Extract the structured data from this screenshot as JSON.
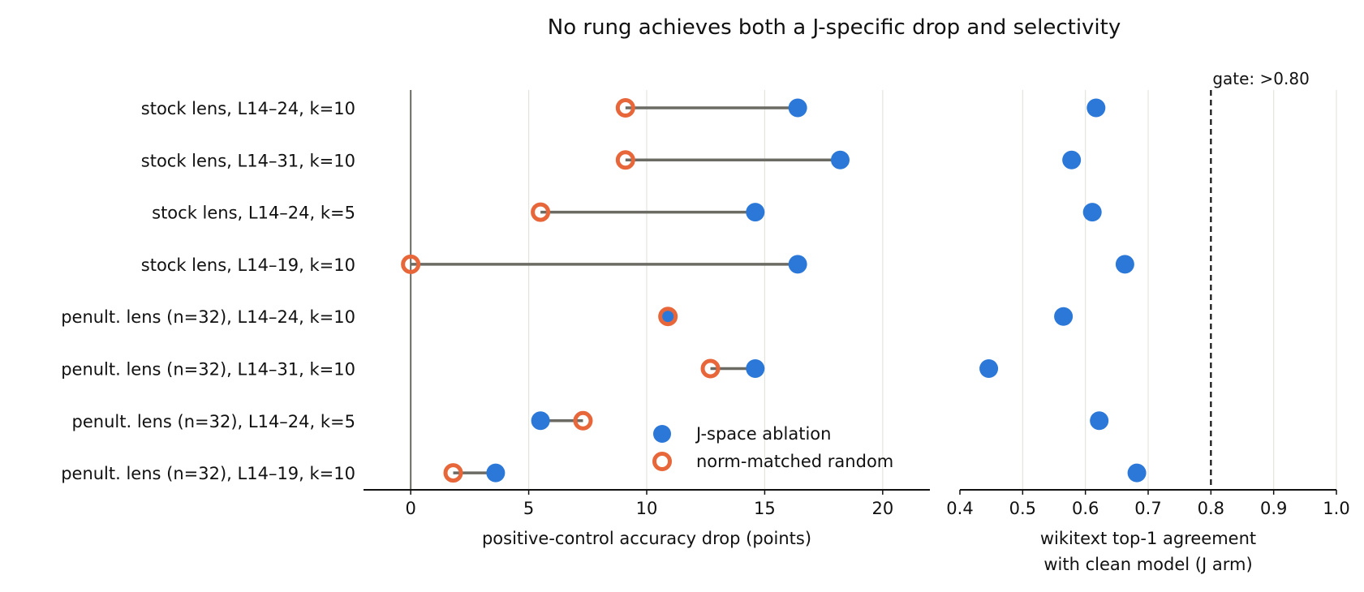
{
  "chart_data": [
    {
      "type": "dumbbell",
      "title": "No rung achieves both a J-specific drop and selectivity",
      "categories": [
        "stock lens, L14–24, k=10",
        "stock lens, L14–31, k=10",
        "stock lens, L14–24, k=5",
        "stock lens, L14–19, k=10",
        "penult. lens (n=32), L14–24, k=10",
        "penult. lens (n=32), L14–31, k=10",
        "penult. lens (n=32), L14–24, k=5",
        "penult. lens (n=32), L14–19, k=10"
      ],
      "series": [
        {
          "name": "J-space ablation",
          "values": [
            16.4,
            18.2,
            14.6,
            16.4,
            10.9,
            14.6,
            5.5,
            3.6
          ]
        },
        {
          "name": "norm-matched random",
          "values": [
            9.1,
            9.1,
            5.5,
            0.0,
            10.9,
            12.7,
            7.3,
            1.8
          ]
        }
      ],
      "xlabel": "positive-control accuracy drop (points)",
      "xlim": [
        -2,
        22
      ],
      "xticks": [
        0,
        5,
        10,
        15,
        20
      ],
      "legend_position": "lower-right",
      "colors": {
        "j_space": "#2b78d8",
        "random": "#e8673a",
        "connector": "#6b6b63"
      }
    },
    {
      "type": "scatter",
      "categories_shared_with": "previous",
      "series": [
        {
          "name": "J-space ablation",
          "values": [
            0.617,
            0.578,
            0.611,
            0.663,
            0.565,
            0.446,
            0.622,
            0.682
          ]
        }
      ],
      "xlabel": [
        "wikitext top-1 agreement",
        "with clean model (J arm)"
      ],
      "xlim": [
        0.4,
        1.0
      ],
      "xticks": [
        "0.4",
        "0.5",
        "0.6",
        "0.7",
        "0.8",
        "0.9",
        "1.0"
      ],
      "threshold": {
        "value": 0.8,
        "label": "gate: >0.80"
      },
      "grid": true
    }
  ]
}
